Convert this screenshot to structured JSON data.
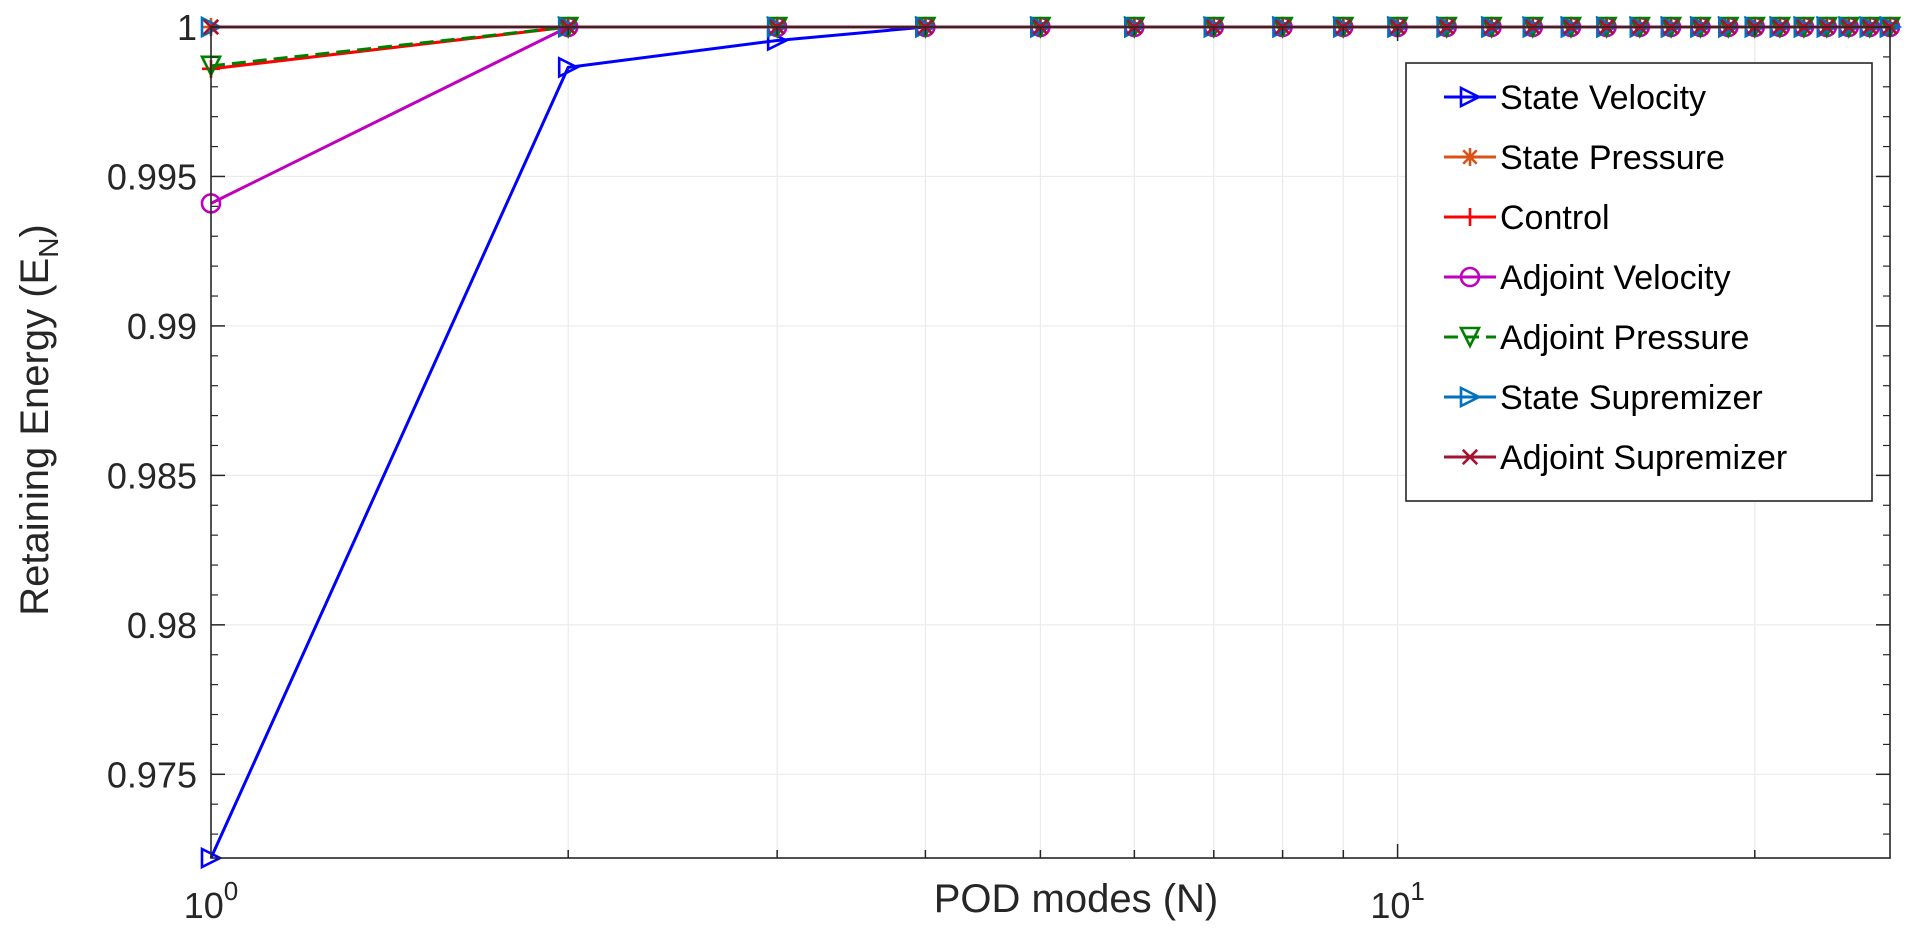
{
  "chart_data": {
    "type": "line",
    "xscale": "log",
    "xlabel": "POD modes (N)",
    "ylabel": "Retaining Energy (E",
    "ylabel_sub": "N",
    "ylabel_close": ")",
    "xlim": [
      1,
      26
    ],
    "ylim": [
      0.9722,
      1.0
    ],
    "x_ticks": [
      {
        "value": 1,
        "base": "10",
        "exp": "0"
      },
      {
        "value": 10,
        "base": "10",
        "exp": "1"
      }
    ],
    "y_ticks": [
      {
        "value": 0.975,
        "label": "0.975"
      },
      {
        "value": 0.98,
        "label": "0.98"
      },
      {
        "value": 0.985,
        "label": "0.985"
      },
      {
        "value": 0.99,
        "label": "0.99"
      },
      {
        "value": 0.995,
        "label": "0.995"
      },
      {
        "value": 1.0,
        "label": "1"
      }
    ],
    "grid": true,
    "legend_position": "top-right",
    "series": [
      {
        "name": "State Velocity",
        "color": "#0000ff",
        "marker": "triangle-right",
        "dash": "",
        "x": [
          1,
          2,
          3,
          4,
          5,
          6,
          7,
          8,
          9,
          10,
          11,
          12,
          13,
          14,
          15,
          16,
          17,
          18,
          19,
          20,
          21,
          22,
          23,
          24,
          25,
          26
        ],
        "y": [
          0.9722,
          0.99865,
          0.99955,
          1,
          1,
          1,
          1,
          1,
          1,
          1,
          1,
          1,
          1,
          1,
          1,
          1,
          1,
          1,
          1,
          1,
          1,
          1,
          1,
          1,
          1,
          1
        ]
      },
      {
        "name": "State Pressure",
        "color": "#d95319",
        "marker": "asterisk",
        "dash": "",
        "x": [
          1,
          2,
          3,
          4,
          5,
          6,
          7,
          8,
          9,
          10,
          11,
          12,
          13,
          14,
          15,
          16,
          17,
          18,
          19,
          20,
          21,
          22,
          23,
          24,
          25,
          26
        ],
        "y": [
          1,
          1,
          1,
          1,
          1,
          1,
          1,
          1,
          1,
          1,
          1,
          1,
          1,
          1,
          1,
          1,
          1,
          1,
          1,
          1,
          1,
          1,
          1,
          1,
          1,
          1
        ]
      },
      {
        "name": "Control",
        "color": "#ff0000",
        "marker": "plus",
        "dash": "",
        "x": [
          1,
          2,
          3,
          4,
          5,
          6,
          7,
          8,
          9,
          10,
          11,
          12,
          13,
          14,
          15,
          16,
          17,
          18,
          19,
          20,
          21,
          22,
          23,
          24,
          25,
          26
        ],
        "y": [
          0.9986,
          1,
          1,
          1,
          1,
          1,
          1,
          1,
          1,
          1,
          1,
          1,
          1,
          1,
          1,
          1,
          1,
          1,
          1,
          1,
          1,
          1,
          1,
          1,
          1,
          1
        ]
      },
      {
        "name": "Adjoint Velocity",
        "color": "#bf00bf",
        "marker": "circle",
        "dash": "",
        "x": [
          1,
          2,
          3,
          4,
          5,
          6,
          7,
          8,
          9,
          10,
          11,
          12,
          13,
          14,
          15,
          16,
          17,
          18,
          19,
          20,
          21,
          22,
          23,
          24,
          25,
          26
        ],
        "y": [
          0.9941,
          1,
          1,
          1,
          1,
          1,
          1,
          1,
          1,
          1,
          1,
          1,
          1,
          1,
          1,
          1,
          1,
          1,
          1,
          1,
          1,
          1,
          1,
          1,
          1,
          1
        ]
      },
      {
        "name": "Adjoint Pressure",
        "color": "#008000",
        "marker": "triangle-down",
        "dash": "14,7",
        "x": [
          1,
          2,
          3,
          4,
          5,
          6,
          7,
          8,
          9,
          10,
          11,
          12,
          13,
          14,
          15,
          16,
          17,
          18,
          19,
          20,
          21,
          22,
          23,
          24,
          25,
          26
        ],
        "y": [
          0.9987,
          1,
          1,
          1,
          1,
          1,
          1,
          1,
          1,
          1,
          1,
          1,
          1,
          1,
          1,
          1,
          1,
          1,
          1,
          1,
          1,
          1,
          1,
          1,
          1,
          1
        ]
      },
      {
        "name": "State Supremizer",
        "color": "#0072bd",
        "marker": "triangle-right",
        "dash": "",
        "x": [
          1,
          2,
          3,
          4,
          5,
          6,
          7,
          8,
          9,
          10,
          11,
          12,
          13,
          14,
          15,
          16,
          17,
          18,
          19,
          20,
          21,
          22,
          23,
          24,
          25,
          26
        ],
        "y": [
          1,
          1,
          1,
          1,
          1,
          1,
          1,
          1,
          1,
          1,
          1,
          1,
          1,
          1,
          1,
          1,
          1,
          1,
          1,
          1,
          1,
          1,
          1,
          1,
          1,
          1
        ]
      },
      {
        "name": "Adjoint Supremizer",
        "color": "#a2142f",
        "marker": "cross",
        "dash": "",
        "x": [
          1,
          2,
          3,
          4,
          5,
          6,
          7,
          8,
          9,
          10,
          11,
          12,
          13,
          14,
          15,
          16,
          17,
          18,
          19,
          20,
          21,
          22,
          23,
          24,
          25,
          26
        ],
        "y": [
          1,
          1,
          1,
          1,
          1,
          1,
          1,
          1,
          1,
          1,
          1,
          1,
          1,
          1,
          1,
          1,
          1,
          1,
          1,
          1,
          1,
          1,
          1,
          1,
          1,
          1
        ]
      }
    ]
  }
}
